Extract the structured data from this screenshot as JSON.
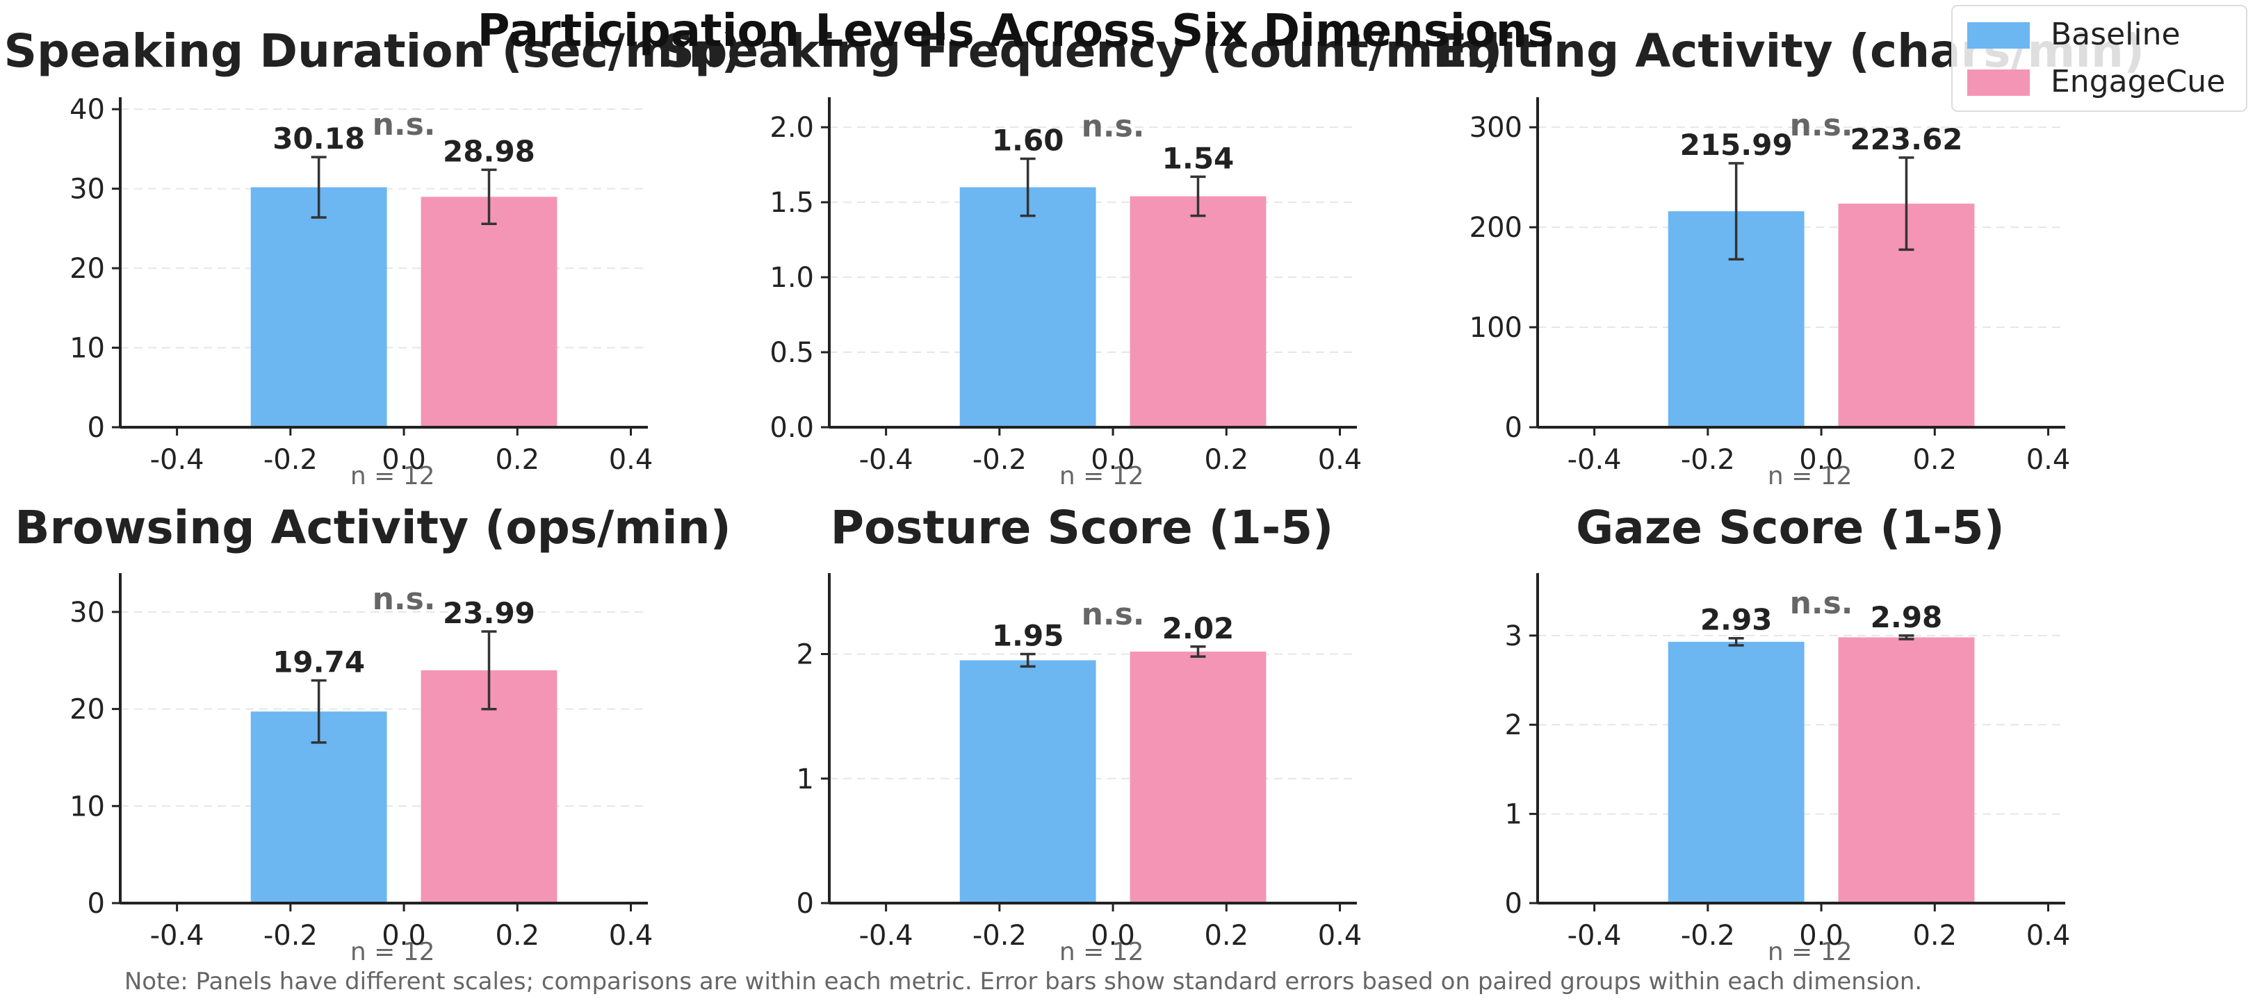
{
  "title": "Participation Levels Across Six Dimensions",
  "legend": {
    "placement": "top-right",
    "items": [
      {
        "label": "Baseline",
        "color": "#6cb6f2"
      },
      {
        "label": "EngageCue",
        "color": "#f495b5"
      }
    ]
  },
  "note": "Note: Panels have different scales; comparisons are within each metric. Error bars show standard errors based on paired groups within each dimension.",
  "colors": {
    "baseline": "#6cb6f2",
    "engagecue": "#f495b5",
    "axis": "#222222",
    "grid": "#e6e6e6",
    "muted": "#666666"
  },
  "chart_data": [
    {
      "type": "bar",
      "title": "Speaking Duration (sec/min)",
      "categories": [
        "Baseline",
        "EngageCue"
      ],
      "x": [
        -0.15,
        0.15
      ],
      "values": [
        30.18,
        28.98
      ],
      "errors": [
        3.8,
        3.4
      ],
      "value_labels": [
        "30.18",
        "28.98"
      ],
      "significance": "n.s.",
      "n_label": "n = 12",
      "xlim": [
        -0.5,
        0.43
      ],
      "ylim": [
        0,
        41.5
      ],
      "xticks": [
        -0.4,
        -0.2,
        0.0,
        0.2,
        0.4
      ],
      "xtick_labels": [
        "-0.4",
        "-0.2",
        "0.0",
        "0.2",
        "0.4"
      ],
      "yticks": [
        0,
        10,
        20,
        30,
        40
      ],
      "ytick_labels": [
        "0",
        "10",
        "20",
        "30",
        "40"
      ],
      "grid": true
    },
    {
      "type": "bar",
      "title": "Speaking Frequency (count/min)",
      "categories": [
        "Baseline",
        "EngageCue"
      ],
      "x": [
        -0.15,
        0.15
      ],
      "values": [
        1.6,
        1.54
      ],
      "errors": [
        0.19,
        0.13
      ],
      "value_labels": [
        "1.60",
        "1.54"
      ],
      "significance": "n.s.",
      "n_label": "n = 12",
      "xlim": [
        -0.5,
        0.43
      ],
      "ylim": [
        0,
        2.2
      ],
      "xticks": [
        -0.4,
        -0.2,
        0.0,
        0.2,
        0.4
      ],
      "xtick_labels": [
        "-0.4",
        "-0.2",
        "0.0",
        "0.2",
        "0.4"
      ],
      "yticks": [
        0,
        0.5,
        1.0,
        1.5,
        2.0
      ],
      "ytick_labels": [
        "0.0",
        "0.5",
        "1.0",
        "1.5",
        "2.0"
      ],
      "grid": true
    },
    {
      "type": "bar",
      "title": "Editing Activity (chars/min)",
      "categories": [
        "Baseline",
        "EngageCue"
      ],
      "x": [
        -0.15,
        0.15
      ],
      "values": [
        215.99,
        223.62
      ],
      "errors": [
        48,
        46
      ],
      "value_labels": [
        "215.99",
        "223.62"
      ],
      "significance": "n.s.",
      "n_label": "n = 12",
      "xlim": [
        -0.5,
        0.43
      ],
      "ylim": [
        0,
        330
      ],
      "xticks": [
        -0.4,
        -0.2,
        0.0,
        0.2,
        0.4
      ],
      "xtick_labels": [
        "-0.4",
        "-0.2",
        "0.0",
        "0.2",
        "0.4"
      ],
      "yticks": [
        0,
        100,
        200,
        300
      ],
      "ytick_labels": [
        "0",
        "100",
        "200",
        "300"
      ],
      "grid": true
    },
    {
      "type": "bar",
      "title": "Browsing Activity (ops/min)",
      "categories": [
        "Baseline",
        "EngageCue"
      ],
      "x": [
        -0.15,
        0.15
      ],
      "values": [
        19.74,
        23.99
      ],
      "errors": [
        3.2,
        4.0
      ],
      "value_labels": [
        "19.74",
        "23.99"
      ],
      "significance": "n.s.",
      "n_label": "n = 12",
      "xlim": [
        -0.5,
        0.43
      ],
      "ylim": [
        0,
        34
      ],
      "xticks": [
        -0.4,
        -0.2,
        0.0,
        0.2,
        0.4
      ],
      "xtick_labels": [
        "-0.4",
        "-0.2",
        "0.0",
        "0.2",
        "0.4"
      ],
      "yticks": [
        0,
        10,
        20,
        30
      ],
      "ytick_labels": [
        "0",
        "10",
        "20",
        "30"
      ],
      "grid": true
    },
    {
      "type": "bar",
      "title": "Posture Score (1-5)",
      "categories": [
        "Baseline",
        "EngageCue"
      ],
      "x": [
        -0.15,
        0.15
      ],
      "values": [
        1.95,
        2.02
      ],
      "errors": [
        0.05,
        0.04
      ],
      "value_labels": [
        "1.95",
        "2.02"
      ],
      "significance": "n.s.",
      "n_label": "n = 12",
      "xlim": [
        -0.5,
        0.43
      ],
      "ylim": [
        0,
        2.65
      ],
      "xticks": [
        -0.4,
        -0.2,
        0.0,
        0.2,
        0.4
      ],
      "xtick_labels": [
        "-0.4",
        "-0.2",
        "0.0",
        "0.2",
        "0.4"
      ],
      "yticks": [
        0,
        1,
        2
      ],
      "ytick_labels": [
        "0",
        "1",
        "2"
      ],
      "grid": true
    },
    {
      "type": "bar",
      "title": "Gaze Score (1-5)",
      "categories": [
        "Baseline",
        "EngageCue"
      ],
      "x": [
        -0.15,
        0.15
      ],
      "values": [
        2.93,
        2.98
      ],
      "errors": [
        0.04,
        0.02
      ],
      "value_labels": [
        "2.93",
        "2.98"
      ],
      "significance": "n.s.",
      "n_label": "n = 12",
      "xlim": [
        -0.5,
        0.43
      ],
      "ylim": [
        0,
        3.7
      ],
      "xticks": [
        -0.4,
        -0.2,
        0.0,
        0.2,
        0.4
      ],
      "xtick_labels": [
        "-0.4",
        "-0.2",
        "0.0",
        "0.2",
        "0.4"
      ],
      "yticks": [
        0,
        1,
        2,
        3
      ],
      "ytick_labels": [
        "0",
        "1",
        "2",
        "3"
      ],
      "grid": true
    }
  ]
}
